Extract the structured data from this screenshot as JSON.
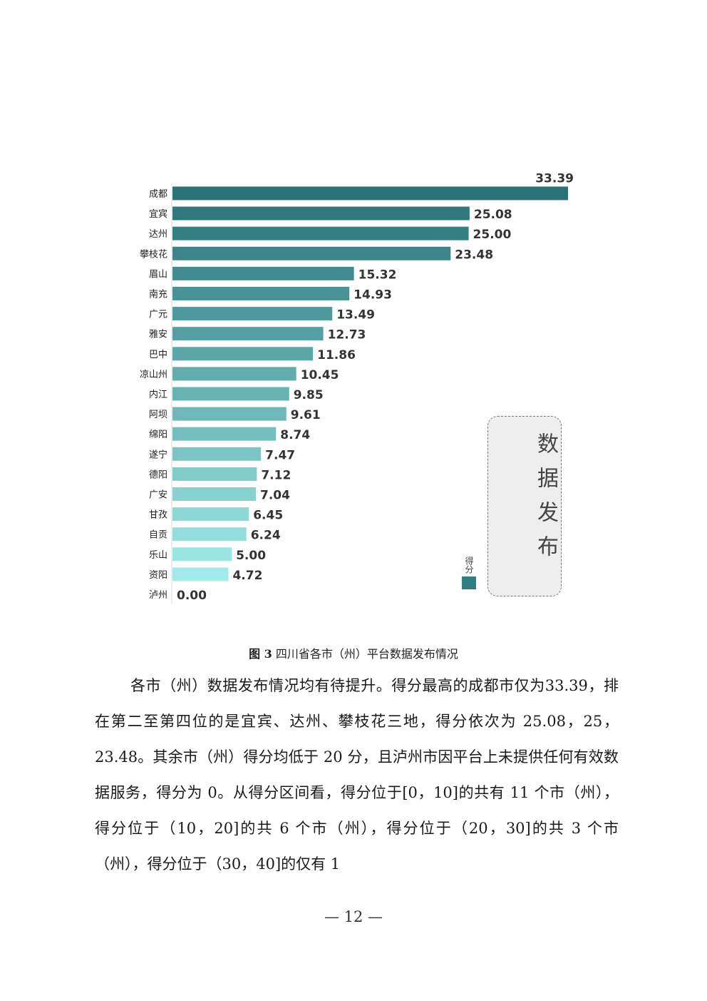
{
  "chart_data": {
    "type": "bar",
    "orientation": "horizontal",
    "title": "",
    "xlabel": "",
    "ylabel": "",
    "xlim": [
      0,
      33.39
    ],
    "grid": false,
    "legend": {
      "placement": "bottom-right",
      "entries": [
        "得分"
      ]
    },
    "categories": [
      "成都",
      "宜宾",
      "达州",
      "攀枝花",
      "眉山",
      "南充",
      "广元",
      "雅安",
      "巴中",
      "凉山州",
      "内江",
      "阿坝",
      "绵阳",
      "遂宁",
      "德阳",
      "广安",
      "甘孜",
      "自贡",
      "乐山",
      "资阳",
      "泸州"
    ],
    "series": [
      {
        "name": "得分",
        "values": [
          33.39,
          25.08,
          25.0,
          23.48,
          15.32,
          14.93,
          13.49,
          12.73,
          11.86,
          10.45,
          9.85,
          9.61,
          8.74,
          7.47,
          7.12,
          7.04,
          6.45,
          6.24,
          5.0,
          4.72,
          0.0
        ],
        "value_labels": [
          "33.39",
          "25.08",
          "25.00",
          "23.48",
          "15.32",
          "14.93",
          "13.49",
          "12.73",
          "11.86",
          "10.45",
          "9.85",
          "9.61",
          "8.74",
          "7.47",
          "7.12",
          "7.04",
          "6.45",
          "6.24",
          "5.00",
          "4.72",
          "0.00"
        ]
      }
    ],
    "colors": {
      "top": "#2a7278",
      "bottom": "#a6f1ef",
      "legend_swatch": "#2f7d82"
    },
    "annotation_box": "数据发布"
  },
  "caption": {
    "number": "图 3",
    "text": "四川省各市（州）平台数据发布情况"
  },
  "body": {
    "paragraph": "各市（州）数据发布情况均有待提升。得分最高的成都市仅为33.39，排在第二至第四位的是宜宾、达州、攀枝花三地，得分依次为 25.08，25，23.48。其余市（州）得分均低于 20 分，且泸州市因平台上未提供任何有效数据服务，得分为 0。从得分区间看，得分位于[0，10]的共有 11 个市（州），得分位于（10，20]的共 6 个市（州），得分位于（20，30]的共 3 个市（州），得分位于（30，40]的仅有 1"
  },
  "page_number": "— 12 —"
}
